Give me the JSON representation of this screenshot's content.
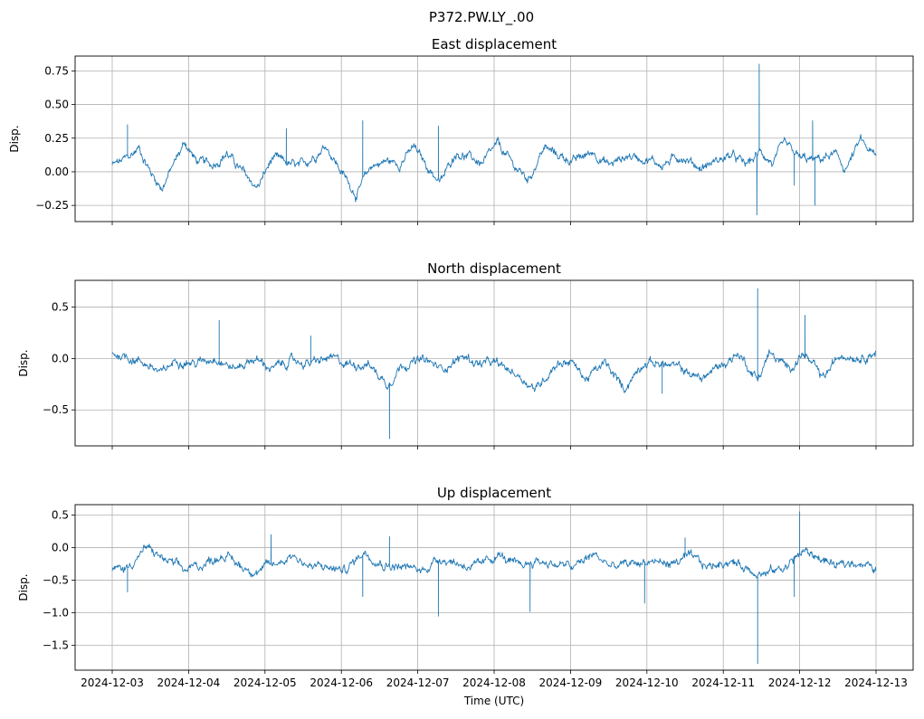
{
  "figure": {
    "suptitle": "P372.PW.LY_.00"
  },
  "chart_data": [
    {
      "type": "line",
      "title": "East displacement",
      "ylabel": "Disp.",
      "xlabel": "",
      "ylim": [
        -0.37,
        0.86
      ],
      "yticks": [
        -0.25,
        0.0,
        0.25,
        0.5,
        0.75
      ],
      "ytick_labels": [
        "−0.25",
        "0.00",
        "0.25",
        "0.50",
        "0.75"
      ],
      "x_range_days": [
        0,
        10
      ],
      "grid": true,
      "series": [
        {
          "name": "East",
          "color": "#1f77b4",
          "x": [
            0,
            0.1,
            0.25,
            0.35,
            0.5,
            0.65,
            0.8,
            0.95,
            1.1,
            1.3,
            1.5,
            1.7,
            1.9,
            2.1,
            2.3,
            2.45,
            2.6,
            2.8,
            3.0,
            3.2,
            3.4,
            3.6,
            3.75,
            3.95,
            4.15,
            4.3,
            4.5,
            4.7,
            4.85,
            5.05,
            5.25,
            5.45,
            5.65,
            5.85,
            6.05,
            6.3,
            6.5,
            6.75,
            7.0,
            7.2,
            7.45,
            7.7,
            7.9,
            8.1,
            8.3,
            8.5,
            8.65,
            8.8,
            9.0,
            9.2,
            9.45,
            9.6,
            9.8,
            10.0
          ],
          "values": [
            0.05,
            0.07,
            0.12,
            0.18,
            0.0,
            -0.12,
            0.05,
            0.22,
            0.08,
            0.05,
            0.14,
            0.0,
            -0.12,
            0.1,
            0.06,
            0.03,
            0.1,
            0.2,
            0.0,
            -0.17,
            0.05,
            0.08,
            0.06,
            0.18,
            0.02,
            -0.08,
            0.15,
            0.1,
            0.06,
            0.2,
            0.05,
            -0.06,
            0.18,
            0.12,
            0.08,
            0.15,
            0.05,
            0.12,
            0.1,
            0.05,
            0.12,
            0.03,
            0.08,
            0.12,
            0.05,
            0.15,
            0.06,
            0.2,
            0.1,
            0.08,
            0.13,
            0.02,
            0.23,
            0.1
          ],
          "spikes": [
            {
              "x": 0.2,
              "value": 0.35
            },
            {
              "x": 2.28,
              "value": 0.32
            },
            {
              "x": 3.28,
              "value": 0.38
            },
            {
              "x": 4.27,
              "value": 0.34
            },
            {
              "x": 8.47,
              "value": 0.8
            },
            {
              "x": 8.44,
              "value": -0.32
            },
            {
              "x": 9.17,
              "value": 0.38
            },
            {
              "x": 9.2,
              "value": -0.25
            },
            {
              "x": 8.93,
              "value": -0.1
            }
          ]
        }
      ]
    },
    {
      "type": "line",
      "title": "North displacement",
      "ylabel": "Disp.",
      "xlabel": "",
      "ylim": [
        -0.85,
        0.76
      ],
      "yticks": [
        -0.5,
        0.0,
        0.5
      ],
      "ytick_labels": [
        "−0.5",
        "0.0",
        "0.5"
      ],
      "x_range_days": [
        0,
        10
      ],
      "grid": true,
      "series": [
        {
          "name": "North",
          "color": "#1f77b4",
          "x": [
            0,
            0.2,
            0.45,
            0.65,
            0.85,
            1.1,
            1.35,
            1.6,
            1.85,
            2.1,
            2.35,
            2.6,
            2.85,
            3.05,
            3.35,
            3.6,
            3.8,
            4.1,
            4.3,
            4.6,
            4.8,
            5.0,
            5.3,
            5.55,
            5.8,
            6.0,
            6.2,
            6.45,
            6.7,
            6.95,
            7.2,
            7.45,
            7.7,
            8.0,
            8.2,
            8.45,
            8.6,
            8.85,
            9.05,
            9.3,
            9.55,
            9.8,
            10.0
          ],
          "values": [
            0.05,
            0.02,
            -0.05,
            -0.15,
            0.0,
            -0.05,
            0.02,
            -0.1,
            0.0,
            -0.1,
            -0.02,
            -0.05,
            0.0,
            -0.05,
            -0.05,
            -0.25,
            -0.05,
            -0.02,
            -0.1,
            0.02,
            -0.05,
            -0.05,
            -0.15,
            -0.3,
            -0.05,
            -0.02,
            -0.2,
            -0.05,
            -0.3,
            -0.03,
            -0.05,
            -0.1,
            -0.2,
            -0.05,
            0.05,
            -0.2,
            0.05,
            -0.1,
            0.05,
            -0.2,
            0.05,
            0.02,
            0.07
          ],
          "spikes": [
            {
              "x": 1.4,
              "value": 0.37
            },
            {
              "x": 3.63,
              "value": -0.78
            },
            {
              "x": 8.45,
              "value": 0.68
            },
            {
              "x": 9.07,
              "value": 0.42
            },
            {
              "x": 7.2,
              "value": -0.34
            },
            {
              "x": 2.6,
              "value": 0.22
            }
          ]
        }
      ]
    },
    {
      "type": "line",
      "title": "Up displacement",
      "ylabel": "Disp.",
      "xlabel": "Time (UTC)",
      "ylim": [
        -1.88,
        0.66
      ],
      "yticks": [
        -1.5,
        -1.0,
        -0.5,
        0.0,
        0.5
      ],
      "ytick_labels": [
        "−1.5",
        "−1.0",
        "−0.5",
        "0.0",
        "0.5"
      ],
      "xticks": [
        0,
        1,
        2,
        3,
        4,
        5,
        6,
        7,
        8,
        9,
        10
      ],
      "xtick_labels": [
        "2024-12-03",
        "2024-12-04",
        "2024-12-05",
        "2024-12-06",
        "2024-12-07",
        "2024-12-08",
        "2024-12-09",
        "2024-12-10",
        "2024-12-11",
        "2024-12-12",
        "2024-12-13"
      ],
      "x_range_days": [
        0,
        10
      ],
      "grid": true,
      "series": [
        {
          "name": "Up",
          "color": "#1f77b4",
          "x": [
            0,
            0.2,
            0.45,
            0.7,
            0.95,
            1.2,
            1.45,
            1.7,
            1.9,
            2.15,
            2.35,
            2.6,
            2.8,
            3.05,
            3.3,
            3.55,
            3.8,
            4.05,
            4.3,
            4.55,
            4.8,
            5.05,
            5.3,
            5.55,
            5.8,
            6.05,
            6.3,
            6.55,
            6.8,
            7.05,
            7.3,
            7.55,
            7.8,
            8.05,
            8.3,
            8.55,
            8.8,
            9.05,
            9.25,
            9.5,
            9.75,
            10.0
          ],
          "values": [
            -0.35,
            -0.3,
            0.0,
            -0.2,
            -0.35,
            -0.25,
            -0.1,
            -0.3,
            -0.35,
            -0.25,
            -0.1,
            -0.3,
            -0.3,
            -0.35,
            -0.05,
            -0.25,
            -0.3,
            -0.35,
            -0.15,
            -0.25,
            -0.3,
            -0.1,
            -0.3,
            -0.2,
            -0.25,
            -0.3,
            -0.1,
            -0.3,
            -0.25,
            -0.2,
            -0.25,
            -0.15,
            -0.3,
            -0.2,
            -0.3,
            -0.4,
            -0.3,
            -0.05,
            -0.15,
            -0.3,
            -0.2,
            -0.35
          ],
          "spikes": [
            {
              "x": 0.2,
              "value": -0.68
            },
            {
              "x": 2.08,
              "value": 0.2
            },
            {
              "x": 3.28,
              "value": -0.75
            },
            {
              "x": 3.63,
              "value": 0.17
            },
            {
              "x": 4.27,
              "value": -1.05
            },
            {
              "x": 5.47,
              "value": -0.98
            },
            {
              "x": 6.97,
              "value": -0.85
            },
            {
              "x": 8.45,
              "value": -1.78
            },
            {
              "x": 9.0,
              "value": 0.55
            },
            {
              "x": 8.93,
              "value": -0.75
            },
            {
              "x": 7.5,
              "value": 0.15
            }
          ]
        }
      ]
    }
  ]
}
